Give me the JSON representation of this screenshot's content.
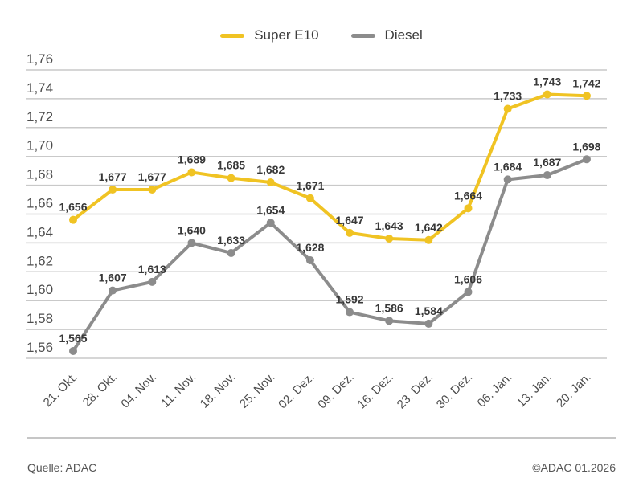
{
  "legend": [
    {
      "label": "Super E10",
      "color": "#F0C323"
    },
    {
      "label": "Diesel",
      "color": "#8C8C8C"
    }
  ],
  "footer": {
    "source": "Quelle: ADAC",
    "copyright": "©ADAC 01.2026"
  },
  "colors": {
    "gridline": "#c9c9c9",
    "tick_text": "#4d4d4d",
    "value_text": "#383838"
  },
  "chart_data": {
    "type": "line",
    "categories": [
      "21. Okt.",
      "28. Okt.",
      "04. Nov.",
      "11. Nov.",
      "18. Nov.",
      "25. Nov.",
      "02. Dez.",
      "09. Dez.",
      "16. Dez.",
      "23. Dez.",
      "30. Dez.",
      "06. Jan.",
      "13. Jan.",
      "20. Jan."
    ],
    "series": [
      {
        "name": "Super E10",
        "color": "#F0C323",
        "values": [
          1.656,
          1.677,
          1.677,
          1.689,
          1.685,
          1.682,
          1.671,
          1.647,
          1.643,
          1.642,
          1.664,
          1.733,
          1.743,
          1.742
        ],
        "labels": [
          "1,656",
          "1,677",
          "1,677",
          "1,689",
          "1,685",
          "1,682",
          "1,671",
          "1,647",
          "1,643",
          "1,642",
          "1,664",
          "1,733",
          "1,743",
          "1,742"
        ]
      },
      {
        "name": "Diesel",
        "color": "#8C8C8C",
        "values": [
          1.565,
          1.607,
          1.613,
          1.64,
          1.633,
          1.654,
          1.628,
          1.592,
          1.586,
          1.584,
          1.606,
          1.684,
          1.687,
          1.698
        ],
        "labels": [
          "1,565",
          "1,607",
          "1,613",
          "1,640",
          "1,633",
          "1,654",
          "1,628",
          "1,592",
          "1,586",
          "1,584",
          "1,606",
          "1,684",
          "1,687",
          "1,698"
        ]
      }
    ],
    "ylim": [
      1.56,
      1.76
    ],
    "yticks": [
      {
        "value": 1.56,
        "label": "1,56"
      },
      {
        "value": 1.58,
        "label": "1,58"
      },
      {
        "value": 1.6,
        "label": "1,60"
      },
      {
        "value": 1.62,
        "label": "1,62"
      },
      {
        "value": 1.64,
        "label": "1,64"
      },
      {
        "value": 1.66,
        "label": "1,66"
      },
      {
        "value": 1.68,
        "label": "1,68"
      },
      {
        "value": 1.7,
        "label": "1,70"
      },
      {
        "value": 1.72,
        "label": "1,72"
      },
      {
        "value": 1.74,
        "label": "1,74"
      },
      {
        "value": 1.76,
        "label": "1,76"
      }
    ],
    "grid": true,
    "legend_position": "top-center",
    "decimal_separator": ",",
    "xlabel": "",
    "ylabel": "",
    "title": ""
  }
}
